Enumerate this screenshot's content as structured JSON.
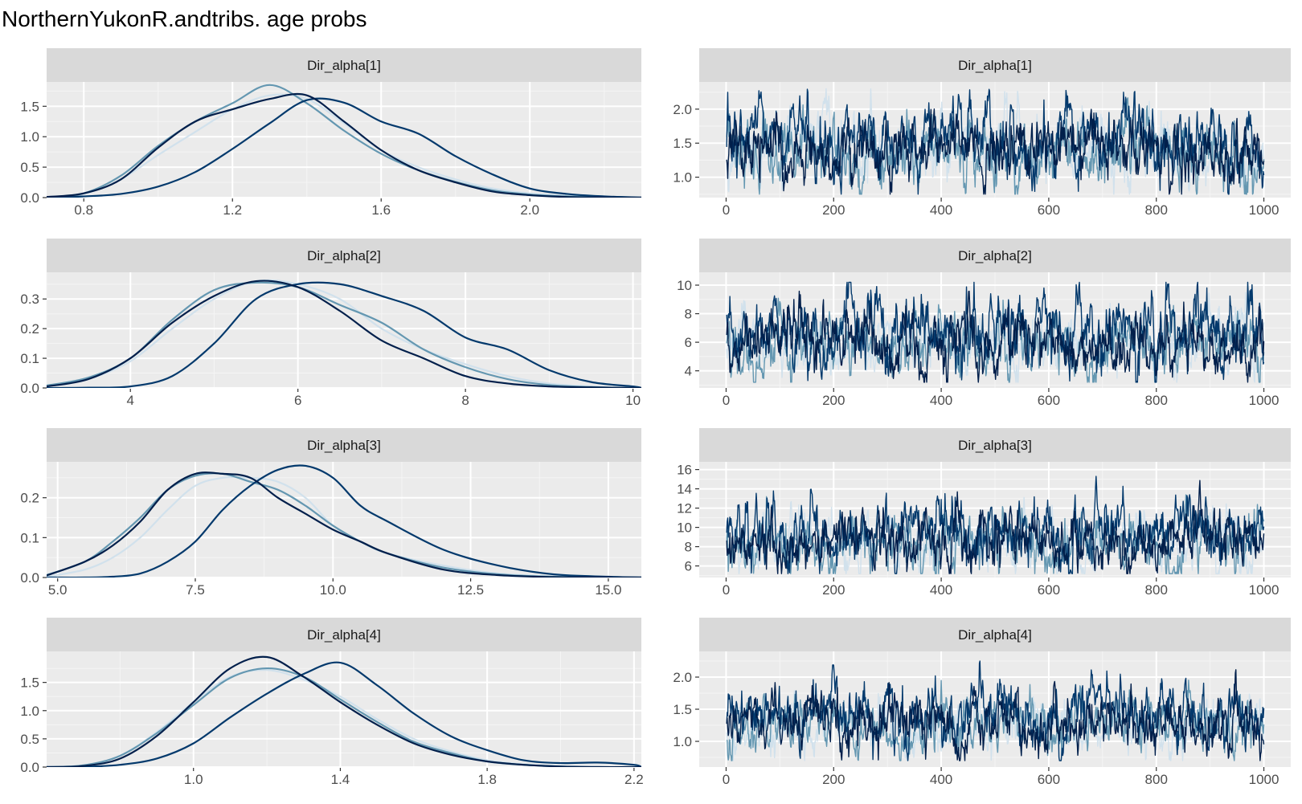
{
  "title": "NorthernYukonR.andtribs. age probs",
  "colors": {
    "panel_background": "#ebebeb",
    "strip_background": "#d9d9d9",
    "grid_major": "#ffffff",
    "grid_minor": "#f5f5f5",
    "tick_text": "#4d4d4d",
    "strip_text": "#1a1a1a",
    "chains": [
      "#d1e1ec",
      "#6497b1",
      "#03396c",
      "#011f4b"
    ]
  },
  "chart_data": [
    {
      "type": "line",
      "subtype": "density",
      "strip": "Dir_alpha[1]",
      "xlim": [
        0.7,
        2.3
      ],
      "ylim": [
        0,
        1.9
      ],
      "xticks": [
        0.8,
        1.2,
        1.6,
        2.0
      ],
      "xtick_labels": [
        "0.8",
        "1.2",
        "1.6",
        "2.0"
      ],
      "yticks": [
        0.0,
        0.5,
        1.0,
        1.5
      ],
      "ytick_labels": [
        "0.0",
        "0.5",
        "1.0",
        "1.5"
      ],
      "series": [
        {
          "color": "#d1e1ec",
          "x": [
            0.7,
            0.8,
            0.9,
            1.0,
            1.1,
            1.2,
            1.3,
            1.4,
            1.5,
            1.6,
            1.7,
            1.8,
            1.9,
            2.0,
            2.1,
            2.2,
            2.3
          ],
          "y": [
            0.01,
            0.06,
            0.3,
            0.7,
            1.08,
            1.45,
            1.68,
            1.62,
            1.22,
            0.78,
            0.5,
            0.3,
            0.15,
            0.07,
            0.03,
            0.01,
            0.0
          ]
        },
        {
          "color": "#6497b1",
          "x": [
            0.7,
            0.8,
            0.9,
            1.0,
            1.1,
            1.2,
            1.3,
            1.4,
            1.5,
            1.6,
            1.7,
            1.8,
            1.9,
            2.0,
            2.1,
            2.2,
            2.3
          ],
          "y": [
            0.01,
            0.07,
            0.36,
            0.85,
            1.25,
            1.55,
            1.85,
            1.55,
            1.1,
            0.72,
            0.45,
            0.26,
            0.12,
            0.05,
            0.02,
            0.01,
            0.0
          ]
        },
        {
          "color": "#03396c",
          "x": [
            0.7,
            0.8,
            0.9,
            1.0,
            1.1,
            1.2,
            1.3,
            1.4,
            1.5,
            1.6,
            1.7,
            1.8,
            1.9,
            2.0,
            2.1,
            2.2,
            2.3
          ],
          "y": [
            0.0,
            0.02,
            0.06,
            0.18,
            0.42,
            0.8,
            1.22,
            1.6,
            1.56,
            1.25,
            1.05,
            0.68,
            0.38,
            0.15,
            0.06,
            0.02,
            0.0
          ]
        },
        {
          "color": "#011f4b",
          "x": [
            0.7,
            0.8,
            0.9,
            1.0,
            1.1,
            1.2,
            1.3,
            1.4,
            1.5,
            1.6,
            1.7,
            1.8,
            1.9,
            2.0,
            2.1,
            2.2,
            2.3
          ],
          "y": [
            0.01,
            0.07,
            0.3,
            0.82,
            1.25,
            1.45,
            1.62,
            1.68,
            1.25,
            0.78,
            0.45,
            0.25,
            0.1,
            0.04,
            0.01,
            0.0,
            0.0
          ]
        }
      ]
    },
    {
      "type": "line",
      "subtype": "trace",
      "strip": "Dir_alpha[1]",
      "iterations": 1000,
      "xlim": [
        -50,
        1050
      ],
      "ylim": [
        0.7,
        2.4
      ],
      "xticks": [
        0,
        200,
        400,
        600,
        800,
        1000
      ],
      "xtick_labels": [
        "0",
        "200",
        "400",
        "600",
        "800",
        "1000"
      ],
      "yticks": [
        1.0,
        1.5,
        2.0
      ],
      "ytick_labels": [
        "1.0",
        "1.5",
        "2.0"
      ],
      "series": [
        {
          "color": "#d1e1ec",
          "level": 1.4,
          "spread": 0.25,
          "min": 0.75,
          "max": 2.3,
          "seed": 11
        },
        {
          "color": "#6497b1",
          "level": 1.35,
          "spread": 0.25,
          "min": 0.75,
          "max": 2.3,
          "seed": 12
        },
        {
          "color": "#03396c",
          "level": 1.52,
          "spread": 0.27,
          "min": 0.75,
          "max": 2.3,
          "seed": 13
        },
        {
          "color": "#011f4b",
          "level": 1.4,
          "spread": 0.25,
          "min": 0.75,
          "max": 2.3,
          "seed": 14
        }
      ]
    },
    {
      "type": "line",
      "subtype": "density",
      "strip": "Dir_alpha[2]",
      "xlim": [
        3,
        10.1
      ],
      "ylim": [
        0,
        0.39
      ],
      "xticks": [
        4,
        6,
        8,
        10
      ],
      "xtick_labels": [
        "4",
        "6",
        "8",
        "10"
      ],
      "yticks": [
        0.0,
        0.1,
        0.2,
        0.3
      ],
      "ytick_labels": [
        "0.0",
        "0.1",
        "0.2",
        "0.3"
      ],
      "series": [
        {
          "color": "#d1e1ec",
          "x": [
            3.0,
            3.5,
            4.0,
            4.5,
            5.0,
            5.5,
            6.0,
            6.5,
            7.0,
            7.5,
            8.0,
            8.5,
            9.0,
            9.5,
            10.0
          ],
          "y": [
            0.005,
            0.03,
            0.09,
            0.2,
            0.3,
            0.36,
            0.35,
            0.3,
            0.2,
            0.13,
            0.08,
            0.04,
            0.015,
            0.005,
            0.0
          ]
        },
        {
          "color": "#6497b1",
          "x": [
            3.0,
            3.5,
            4.0,
            4.5,
            5.0,
            5.5,
            6.0,
            6.5,
            7.0,
            7.5,
            8.0,
            8.5,
            9.0,
            9.5,
            10.0
          ],
          "y": [
            0.008,
            0.035,
            0.1,
            0.23,
            0.33,
            0.355,
            0.34,
            0.28,
            0.22,
            0.13,
            0.07,
            0.03,
            0.01,
            0.003,
            0.0
          ]
        },
        {
          "color": "#03396c",
          "x": [
            3.0,
            3.5,
            4.0,
            4.5,
            5.0,
            5.5,
            6.0,
            6.5,
            7.0,
            7.5,
            8.0,
            8.5,
            9.0,
            9.5,
            10.0
          ],
          "y": [
            0.0,
            0.001,
            0.005,
            0.04,
            0.15,
            0.3,
            0.35,
            0.35,
            0.31,
            0.26,
            0.17,
            0.13,
            0.06,
            0.02,
            0.005
          ]
        },
        {
          "color": "#011f4b",
          "x": [
            3.0,
            3.5,
            4.0,
            4.5,
            5.0,
            5.5,
            6.0,
            6.5,
            7.0,
            7.5,
            8.0,
            8.5,
            9.0,
            9.5,
            10.0
          ],
          "y": [
            0.005,
            0.03,
            0.1,
            0.22,
            0.31,
            0.36,
            0.34,
            0.26,
            0.16,
            0.1,
            0.04,
            0.015,
            0.005,
            0.002,
            0.0
          ]
        }
      ]
    },
    {
      "type": "line",
      "subtype": "trace",
      "strip": "Dir_alpha[2]",
      "iterations": 1000,
      "xlim": [
        -50,
        1050
      ],
      "ylim": [
        2.8,
        10.9
      ],
      "xticks": [
        0,
        200,
        400,
        600,
        800,
        1000
      ],
      "xtick_labels": [
        "0",
        "200",
        "400",
        "600",
        "800",
        "1000"
      ],
      "yticks": [
        4,
        6,
        8,
        10
      ],
      "ytick_labels": [
        "4",
        "6",
        "8",
        "10"
      ],
      "series": [
        {
          "color": "#d1e1ec",
          "level": 6.0,
          "spread": 1.1,
          "min": 3.2,
          "max": 10.2,
          "seed": 21
        },
        {
          "color": "#6497b1",
          "level": 5.8,
          "spread": 1.1,
          "min": 3.2,
          "max": 10.2,
          "seed": 22
        },
        {
          "color": "#03396c",
          "level": 6.6,
          "spread": 1.3,
          "min": 3.2,
          "max": 10.2,
          "seed": 23
        },
        {
          "color": "#011f4b",
          "level": 5.9,
          "spread": 1.1,
          "min": 3.2,
          "max": 10.2,
          "seed": 24
        }
      ]
    },
    {
      "type": "line",
      "subtype": "density",
      "strip": "Dir_alpha[3]",
      "xlim": [
        4.8,
        15.6
      ],
      "ylim": [
        0,
        0.29
      ],
      "xticks": [
        5.0,
        7.5,
        10.0,
        12.5,
        15.0
      ],
      "xtick_labels": [
        "5.0",
        "7.5",
        "10.0",
        "12.5",
        "15.0"
      ],
      "yticks": [
        0.0,
        0.1,
        0.2
      ],
      "ytick_labels": [
        "0.0",
        "0.1",
        "0.2"
      ],
      "series": [
        {
          "color": "#d1e1ec",
          "x": [
            4.8,
            5.5,
            6.0,
            6.5,
            7.0,
            7.5,
            8.0,
            8.5,
            9.0,
            9.5,
            10.0,
            10.5,
            11.0,
            12.0,
            13.0,
            14.0,
            15.0
          ],
          "y": [
            0.002,
            0.02,
            0.05,
            0.1,
            0.17,
            0.23,
            0.25,
            0.25,
            0.24,
            0.2,
            0.13,
            0.09,
            0.06,
            0.03,
            0.01,
            0.003,
            0.0
          ]
        },
        {
          "color": "#6497b1",
          "x": [
            4.8,
            5.5,
            6.0,
            6.5,
            7.0,
            7.5,
            8.0,
            8.5,
            9.0,
            9.5,
            10.0,
            10.5,
            11.0,
            12.0,
            13.0,
            14.0,
            15.0
          ],
          "y": [
            0.006,
            0.04,
            0.09,
            0.15,
            0.22,
            0.255,
            0.26,
            0.24,
            0.22,
            0.18,
            0.13,
            0.09,
            0.06,
            0.025,
            0.008,
            0.002,
            0.0
          ]
        },
        {
          "color": "#03396c",
          "x": [
            4.8,
            5.5,
            6.0,
            6.5,
            7.0,
            7.5,
            8.0,
            8.5,
            9.0,
            9.5,
            10.0,
            10.5,
            11.0,
            12.0,
            13.0,
            14.0,
            15.0
          ],
          "y": [
            0.0,
            0.0,
            0.002,
            0.01,
            0.04,
            0.09,
            0.17,
            0.23,
            0.27,
            0.28,
            0.25,
            0.18,
            0.14,
            0.07,
            0.03,
            0.008,
            0.002
          ]
        },
        {
          "color": "#011f4b",
          "x": [
            4.8,
            5.5,
            6.0,
            6.5,
            7.0,
            7.5,
            8.0,
            8.5,
            9.0,
            9.5,
            10.0,
            10.5,
            11.0,
            12.0,
            13.0,
            14.0,
            15.0
          ],
          "y": [
            0.005,
            0.04,
            0.08,
            0.14,
            0.22,
            0.26,
            0.26,
            0.25,
            0.2,
            0.16,
            0.12,
            0.09,
            0.06,
            0.02,
            0.006,
            0.001,
            0.0
          ]
        }
      ]
    },
    {
      "type": "line",
      "subtype": "trace",
      "strip": "Dir_alpha[3]",
      "iterations": 1000,
      "xlim": [
        -50,
        1050
      ],
      "ylim": [
        4.8,
        16.8
      ],
      "xticks": [
        0,
        200,
        400,
        600,
        800,
        1000
      ],
      "xtick_labels": [
        "0",
        "200",
        "400",
        "600",
        "800",
        "1000"
      ],
      "yticks": [
        6,
        8,
        10,
        12,
        14,
        16
      ],
      "ytick_labels": [
        "6",
        "8",
        "10",
        "12",
        "14",
        "16"
      ],
      "series": [
        {
          "color": "#d1e1ec",
          "level": 8.5,
          "spread": 1.5,
          "min": 5.2,
          "max": 15.6,
          "seed": 31
        },
        {
          "color": "#6497b1",
          "level": 8.2,
          "spread": 1.5,
          "min": 5.2,
          "max": 15.6,
          "seed": 32
        },
        {
          "color": "#03396c",
          "level": 9.4,
          "spread": 1.8,
          "min": 5.2,
          "max": 15.6,
          "seed": 33
        },
        {
          "color": "#011f4b",
          "level": 8.3,
          "spread": 1.5,
          "min": 5.2,
          "max": 15.6,
          "seed": 34
        }
      ]
    },
    {
      "type": "line",
      "subtype": "density",
      "strip": "Dir_alpha[4]",
      "xlim": [
        0.6,
        2.22
      ],
      "ylim": [
        0,
        2.05
      ],
      "xticks": [
        1.0,
        1.4,
        1.8,
        2.2
      ],
      "xtick_labels": [
        "1.0",
        "1.4",
        "1.8",
        "2.2"
      ],
      "yticks": [
        0.0,
        0.5,
        1.0,
        1.5
      ],
      "ytick_labels": [
        "0.0",
        "0.5",
        "1.0",
        "1.5"
      ],
      "series": [
        {
          "color": "#d1e1ec",
          "x": [
            0.6,
            0.7,
            0.8,
            0.9,
            1.0,
            1.1,
            1.2,
            1.3,
            1.4,
            1.5,
            1.6,
            1.7,
            1.8,
            1.9,
            2.0,
            2.1,
            2.2
          ],
          "y": [
            0.0,
            0.03,
            0.2,
            0.62,
            1.15,
            1.6,
            1.72,
            1.55,
            1.25,
            0.85,
            0.5,
            0.28,
            0.12,
            0.05,
            0.02,
            0.0,
            0.0
          ]
        },
        {
          "color": "#6497b1",
          "x": [
            0.6,
            0.7,
            0.8,
            0.9,
            1.0,
            1.1,
            1.2,
            1.3,
            1.4,
            1.5,
            1.6,
            1.7,
            1.8,
            1.9,
            2.0,
            2.1,
            2.2
          ],
          "y": [
            0.0,
            0.03,
            0.2,
            0.6,
            1.1,
            1.58,
            1.75,
            1.6,
            1.2,
            0.8,
            0.45,
            0.25,
            0.1,
            0.04,
            0.01,
            0.0,
            0.0
          ]
        },
        {
          "color": "#03396c",
          "x": [
            0.6,
            0.7,
            0.8,
            0.9,
            1.0,
            1.1,
            1.2,
            1.3,
            1.4,
            1.5,
            1.6,
            1.7,
            1.8,
            1.9,
            2.0,
            2.1,
            2.2
          ],
          "y": [
            0.0,
            0.005,
            0.04,
            0.15,
            0.42,
            0.88,
            1.3,
            1.65,
            1.85,
            1.45,
            0.95,
            0.55,
            0.3,
            0.12,
            0.07,
            0.08,
            0.04
          ]
        },
        {
          "color": "#011f4b",
          "x": [
            0.6,
            0.7,
            0.8,
            0.9,
            1.0,
            1.1,
            1.2,
            1.3,
            1.4,
            1.5,
            1.6,
            1.7,
            1.8,
            1.9,
            2.0,
            2.1,
            2.2
          ],
          "y": [
            0.0,
            0.02,
            0.15,
            0.55,
            1.15,
            1.75,
            1.95,
            1.6,
            1.15,
            0.75,
            0.42,
            0.22,
            0.1,
            0.04,
            0.01,
            0.0,
            0.0
          ]
        }
      ]
    },
    {
      "type": "line",
      "subtype": "trace",
      "strip": "Dir_alpha[4]",
      "iterations": 1000,
      "xlim": [
        -50,
        1050
      ],
      "ylim": [
        0.6,
        2.4
      ],
      "xticks": [
        0,
        200,
        400,
        600,
        800,
        1000
      ],
      "xtick_labels": [
        "0",
        "200",
        "400",
        "600",
        "800",
        "1000"
      ],
      "yticks": [
        1.0,
        1.5,
        2.0
      ],
      "ytick_labels": [
        "1.0",
        "1.5",
        "2.0"
      ],
      "series": [
        {
          "color": "#d1e1ec",
          "level": 1.25,
          "spread": 0.22,
          "min": 0.7,
          "max": 2.25,
          "seed": 41
        },
        {
          "color": "#6497b1",
          "level": 1.25,
          "spread": 0.22,
          "min": 0.7,
          "max": 2.25,
          "seed": 42
        },
        {
          "color": "#03396c",
          "level": 1.38,
          "spread": 0.24,
          "min": 0.7,
          "max": 2.25,
          "seed": 43
        },
        {
          "color": "#011f4b",
          "level": 1.25,
          "spread": 0.22,
          "min": 0.7,
          "max": 2.25,
          "seed": 44
        }
      ]
    }
  ]
}
